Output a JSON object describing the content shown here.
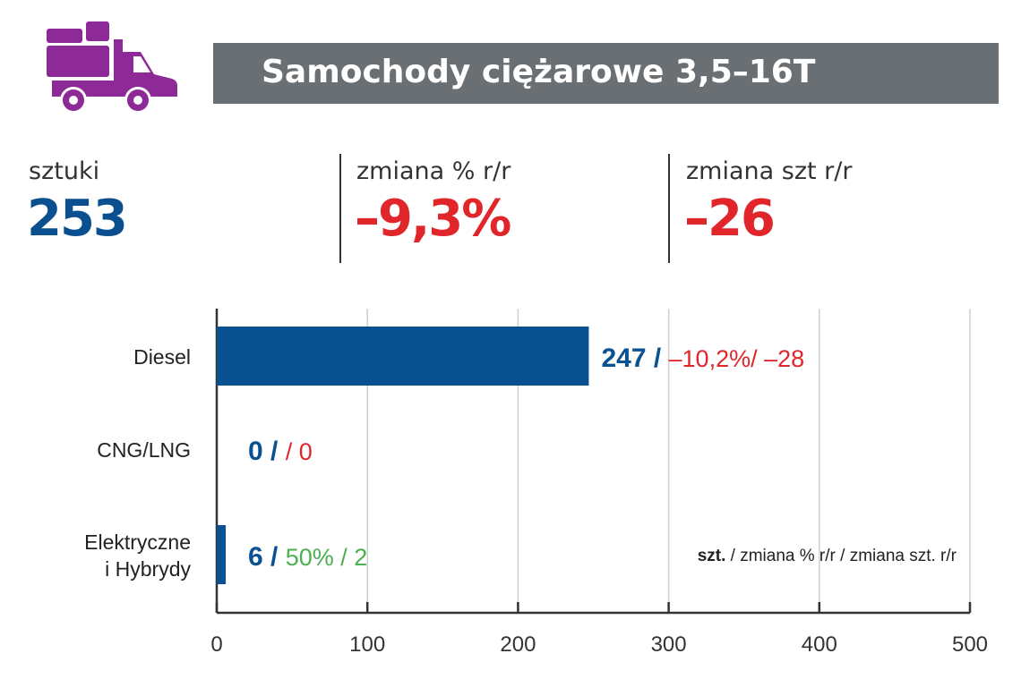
{
  "header": {
    "title": "Samochody ciężarowe 3,5–16T",
    "icon": "truck-icon",
    "icon_color": "#8e2a97"
  },
  "stats": [
    {
      "label": "sztuki",
      "value": "253",
      "color": "#0a4f8f"
    },
    {
      "label": "zmiana % r/r",
      "value": "–9,3%",
      "color": "#e0262b"
    },
    {
      "label": "zmiana szt r/r",
      "value": "–26",
      "color": "#e0262b"
    }
  ],
  "chart_data": {
    "type": "bar",
    "orientation": "horizontal",
    "categories": [
      "Diesel",
      "CNG/LNG",
      "Elektryczne i Hybrydy"
    ],
    "category_lines": [
      [
        "Diesel"
      ],
      [
        "CNG/LNG"
      ],
      [
        "Elektryczne",
        "i Hybrydy"
      ]
    ],
    "values": [
      247,
      0,
      6
    ],
    "data_labels": [
      {
        "units": "247 /",
        "pct": "–10,2%/ –28",
        "pct_color": "#e0262b"
      },
      {
        "units": "0 /",
        "pct": " / 0",
        "pct_color": "#e0262b"
      },
      {
        "units": "6 /",
        "pct": "50% / 2",
        "pct_color": "#4caf50"
      }
    ],
    "legend_note": {
      "bold": "szt.",
      "rest": " / zmiana % r/r / zmiana szt. r/r"
    },
    "xlim": [
      0,
      500
    ],
    "xticks": [
      "0",
      "100",
      "200",
      "300",
      "400",
      "500"
    ],
    "grid": true,
    "bar_color": "#0a5191"
  }
}
